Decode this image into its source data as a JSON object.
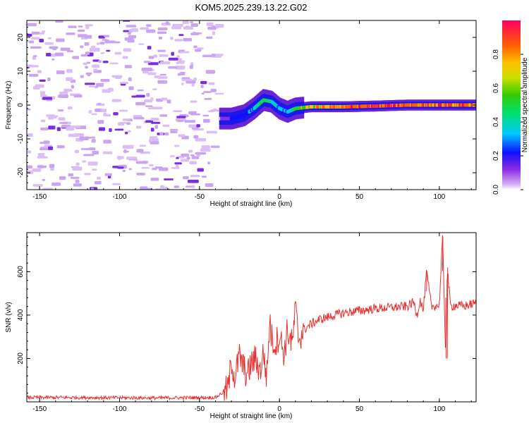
{
  "title": "KOM5.2025.239.13.22.G02",
  "chart_data": [
    {
      "type": "heatmap",
      "xlabel": "Height of straight line (km)",
      "ylabel": "Frequency (Hz)",
      "xlim": [
        -158,
        123
      ],
      "ylim": [
        -25,
        25
      ],
      "xticks": [
        -150,
        -100,
        -50,
        0,
        50,
        100
      ],
      "yticks": [
        -20,
        -10,
        0,
        10,
        20
      ],
      "colorbar": {
        "label": "Normalized spectral amplitude",
        "ticks": [
          "0.0",
          "0.2",
          "0.4",
          "0.6",
          "0.8"
        ],
        "range": [
          0,
          1
        ]
      },
      "ridge": {
        "x": [
          -37,
          -30,
          -22,
          -16,
          -10,
          -5,
          0,
          5,
          10,
          20,
          40,
          60,
          80,
          100,
          123
        ],
        "freq": [
          -4,
          -4,
          -3,
          -1,
          1.5,
          1,
          -1,
          -2,
          -1,
          -0.5,
          -0.5,
          -0.3,
          0,
          0,
          0
        ],
        "amplitude": [
          0.15,
          0.25,
          0.35,
          0.45,
          0.6,
          0.5,
          0.4,
          0.45,
          0.6,
          0.75,
          0.9,
          0.95,
          0.95,
          0.9,
          0.9
        ]
      },
      "noise_region_x": [
        -158,
        -37
      ]
    },
    {
      "type": "line",
      "xlabel": "Height of straight line (km)",
      "ylabel": "SNR (v/v)",
      "xlim": [
        -158,
        123
      ],
      "ylim": [
        0,
        780
      ],
      "xticks": [
        -150,
        -100,
        -50,
        0,
        50,
        100
      ],
      "yticks": [
        200,
        400,
        600
      ],
      "color": "#e8302f",
      "series": {
        "x": [
          -158,
          -120,
          -80,
          -40,
          -32,
          -30,
          -28,
          -25,
          -22,
          -20,
          -18,
          -15,
          -12,
          -10,
          -8,
          -6,
          -5,
          -3,
          0,
          3,
          5,
          8,
          10,
          12,
          15,
          20,
          25,
          30,
          40,
          50,
          60,
          70,
          80,
          84,
          86,
          88,
          90,
          92,
          95,
          100,
          102,
          104,
          105,
          107,
          110,
          115,
          120,
          123
        ],
        "y": [
          20,
          20,
          18,
          20,
          60,
          190,
          110,
          210,
          150,
          120,
          170,
          200,
          140,
          230,
          110,
          380,
          300,
          260,
          310,
          220,
          330,
          260,
          430,
          290,
          330,
          360,
          380,
          390,
          410,
          420,
          430,
          435,
          440,
          460,
          400,
          470,
          420,
          600,
          440,
          445,
          760,
          200,
          620,
          440,
          445,
          440,
          450,
          455
        ]
      }
    }
  ]
}
